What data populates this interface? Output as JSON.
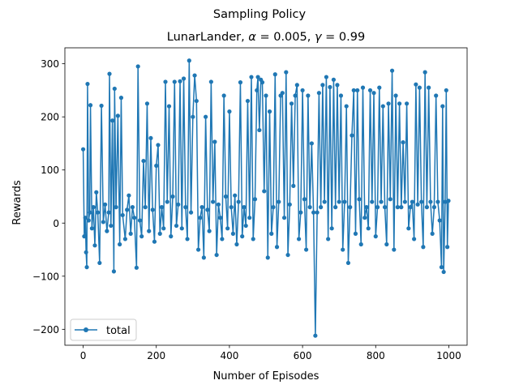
{
  "figure": {
    "suptitle": "Sampling Policy",
    "title_prefix": "LunarLander, ",
    "alpha_symbol": "α",
    "alpha_value": " = 0.005, ",
    "gamma_symbol": "γ",
    "gamma_value": " = 0.99"
  },
  "chart_data": {
    "type": "line",
    "suptitle": "Sampling Policy",
    "title": "LunarLander, α = 0.005, γ = 0.99",
    "xlabel": "Number of Episodes",
    "ylabel": "Rewards",
    "xlim": [
      -50,
      1050
    ],
    "ylim": [
      -230,
      330
    ],
    "xticks": [
      0,
      200,
      400,
      600,
      800,
      1000
    ],
    "yticks": [
      -200,
      -100,
      0,
      100,
      200,
      300
    ],
    "xtick_labels": [
      "0",
      "200",
      "400",
      "600",
      "800",
      "1000"
    ],
    "ytick_labels": [
      "−200",
      "−100",
      "0",
      "100",
      "200",
      "300"
    ],
    "legend_position": "lower-left",
    "grid": false,
    "marker": "circle",
    "series_color": "#1f77b4",
    "series": [
      {
        "name": "total",
        "x": [
          0,
          3,
          6,
          8,
          10,
          12,
          15,
          18,
          20,
          24,
          28,
          32,
          36,
          40,
          45,
          50,
          55,
          60,
          65,
          70,
          72,
          76,
          80,
          84,
          86,
          90,
          95,
          100,
          104,
          108,
          115,
          120,
          125,
          130,
          135,
          140,
          146,
          150,
          155,
          160,
          165,
          170,
          175,
          180,
          185,
          190,
          195,
          200,
          205,
          210,
          215,
          220,
          225,
          230,
          235,
          240,
          245,
          250,
          255,
          260,
          265,
          270,
          275,
          280,
          285,
          290,
          295,
          300,
          305,
          310,
          315,
          320,
          325,
          330,
          335,
          340,
          345,
          350,
          355,
          360,
          365,
          370,
          375,
          380,
          385,
          390,
          395,
          400,
          405,
          410,
          415,
          420,
          425,
          430,
          435,
          440,
          445,
          450,
          455,
          460,
          465,
          470,
          475,
          478,
          482,
          486,
          490,
          495,
          500,
          505,
          510,
          515,
          520,
          525,
          530,
          535,
          540,
          545,
          550,
          555,
          560,
          565,
          570,
          575,
          580,
          585,
          590,
          595,
          600,
          605,
          610,
          615,
          620,
          625,
          630,
          635,
          640,
          645,
          650,
          655,
          660,
          665,
          670,
          675,
          680,
          685,
          690,
          695,
          700,
          705,
          710,
          715,
          720,
          725,
          730,
          735,
          740,
          745,
          750,
          755,
          760,
          765,
          770,
          775,
          780,
          785,
          790,
          795,
          800,
          805,
          810,
          815,
          820,
          825,
          830,
          835,
          840,
          845,
          850,
          855,
          860,
          865,
          870,
          875,
          880,
          885,
          890,
          895,
          900,
          905,
          910,
          915,
          920,
          925,
          930,
          935,
          940,
          945,
          950,
          955,
          960,
          965,
          970,
          975,
          980,
          983,
          986,
          990,
          993,
          996,
          999
        ],
        "y": [
          139,
          -25,
          10,
          -55,
          -83,
          262,
          5,
          20,
          222,
          -10,
          30,
          -42,
          58,
          20,
          -75,
          221,
          2,
          35,
          -15,
          20,
          281,
          -5,
          193,
          -91,
          253,
          30,
          202,
          -40,
          236,
          15,
          -30,
          25,
          52,
          -20,
          30,
          10,
          -84,
          295,
          5,
          -25,
          117,
          30,
          225,
          -15,
          160,
          25,
          -35,
          108,
          147,
          -20,
          30,
          -10,
          266,
          40,
          220,
          -25,
          50,
          266,
          -5,
          35,
          267,
          -10,
          272,
          30,
          -30,
          306,
          20,
          200,
          278,
          230,
          -50,
          10,
          30,
          -65,
          200,
          25,
          -15,
          266,
          40,
          153,
          -60,
          35,
          10,
          -30,
          240,
          50,
          -10,
          210,
          30,
          -20,
          52,
          -40,
          40,
          265,
          -25,
          30,
          -5,
          230,
          10,
          275,
          -30,
          45,
          250,
          275,
          175,
          270,
          265,
          60,
          240,
          -65,
          210,
          -20,
          30,
          280,
          -45,
          40,
          240,
          245,
          10,
          284,
          -60,
          35,
          225,
          70,
          240,
          260,
          -30,
          20,
          250,
          45,
          -50,
          240,
          30,
          150,
          20,
          -212,
          20,
          245,
          30,
          260,
          40,
          275,
          -30,
          256,
          -10,
          270,
          30,
          260,
          40,
          240,
          -50,
          40,
          220,
          -75,
          30,
          165,
          250,
          -20,
          250,
          45,
          -40,
          255,
          10,
          30,
          -10,
          250,
          40,
          245,
          -25,
          30,
          255,
          40,
          220,
          30,
          -40,
          225,
          45,
          287,
          -50,
          240,
          30,
          225,
          30,
          152,
          40,
          225,
          -10,
          30,
          40,
          -30,
          261,
          35,
          255,
          40,
          -45,
          284,
          30,
          255,
          40,
          -20,
          30,
          240,
          40,
          5,
          -83,
          220,
          -92,
          40,
          250,
          -45,
          42
        ]
      }
    ]
  }
}
